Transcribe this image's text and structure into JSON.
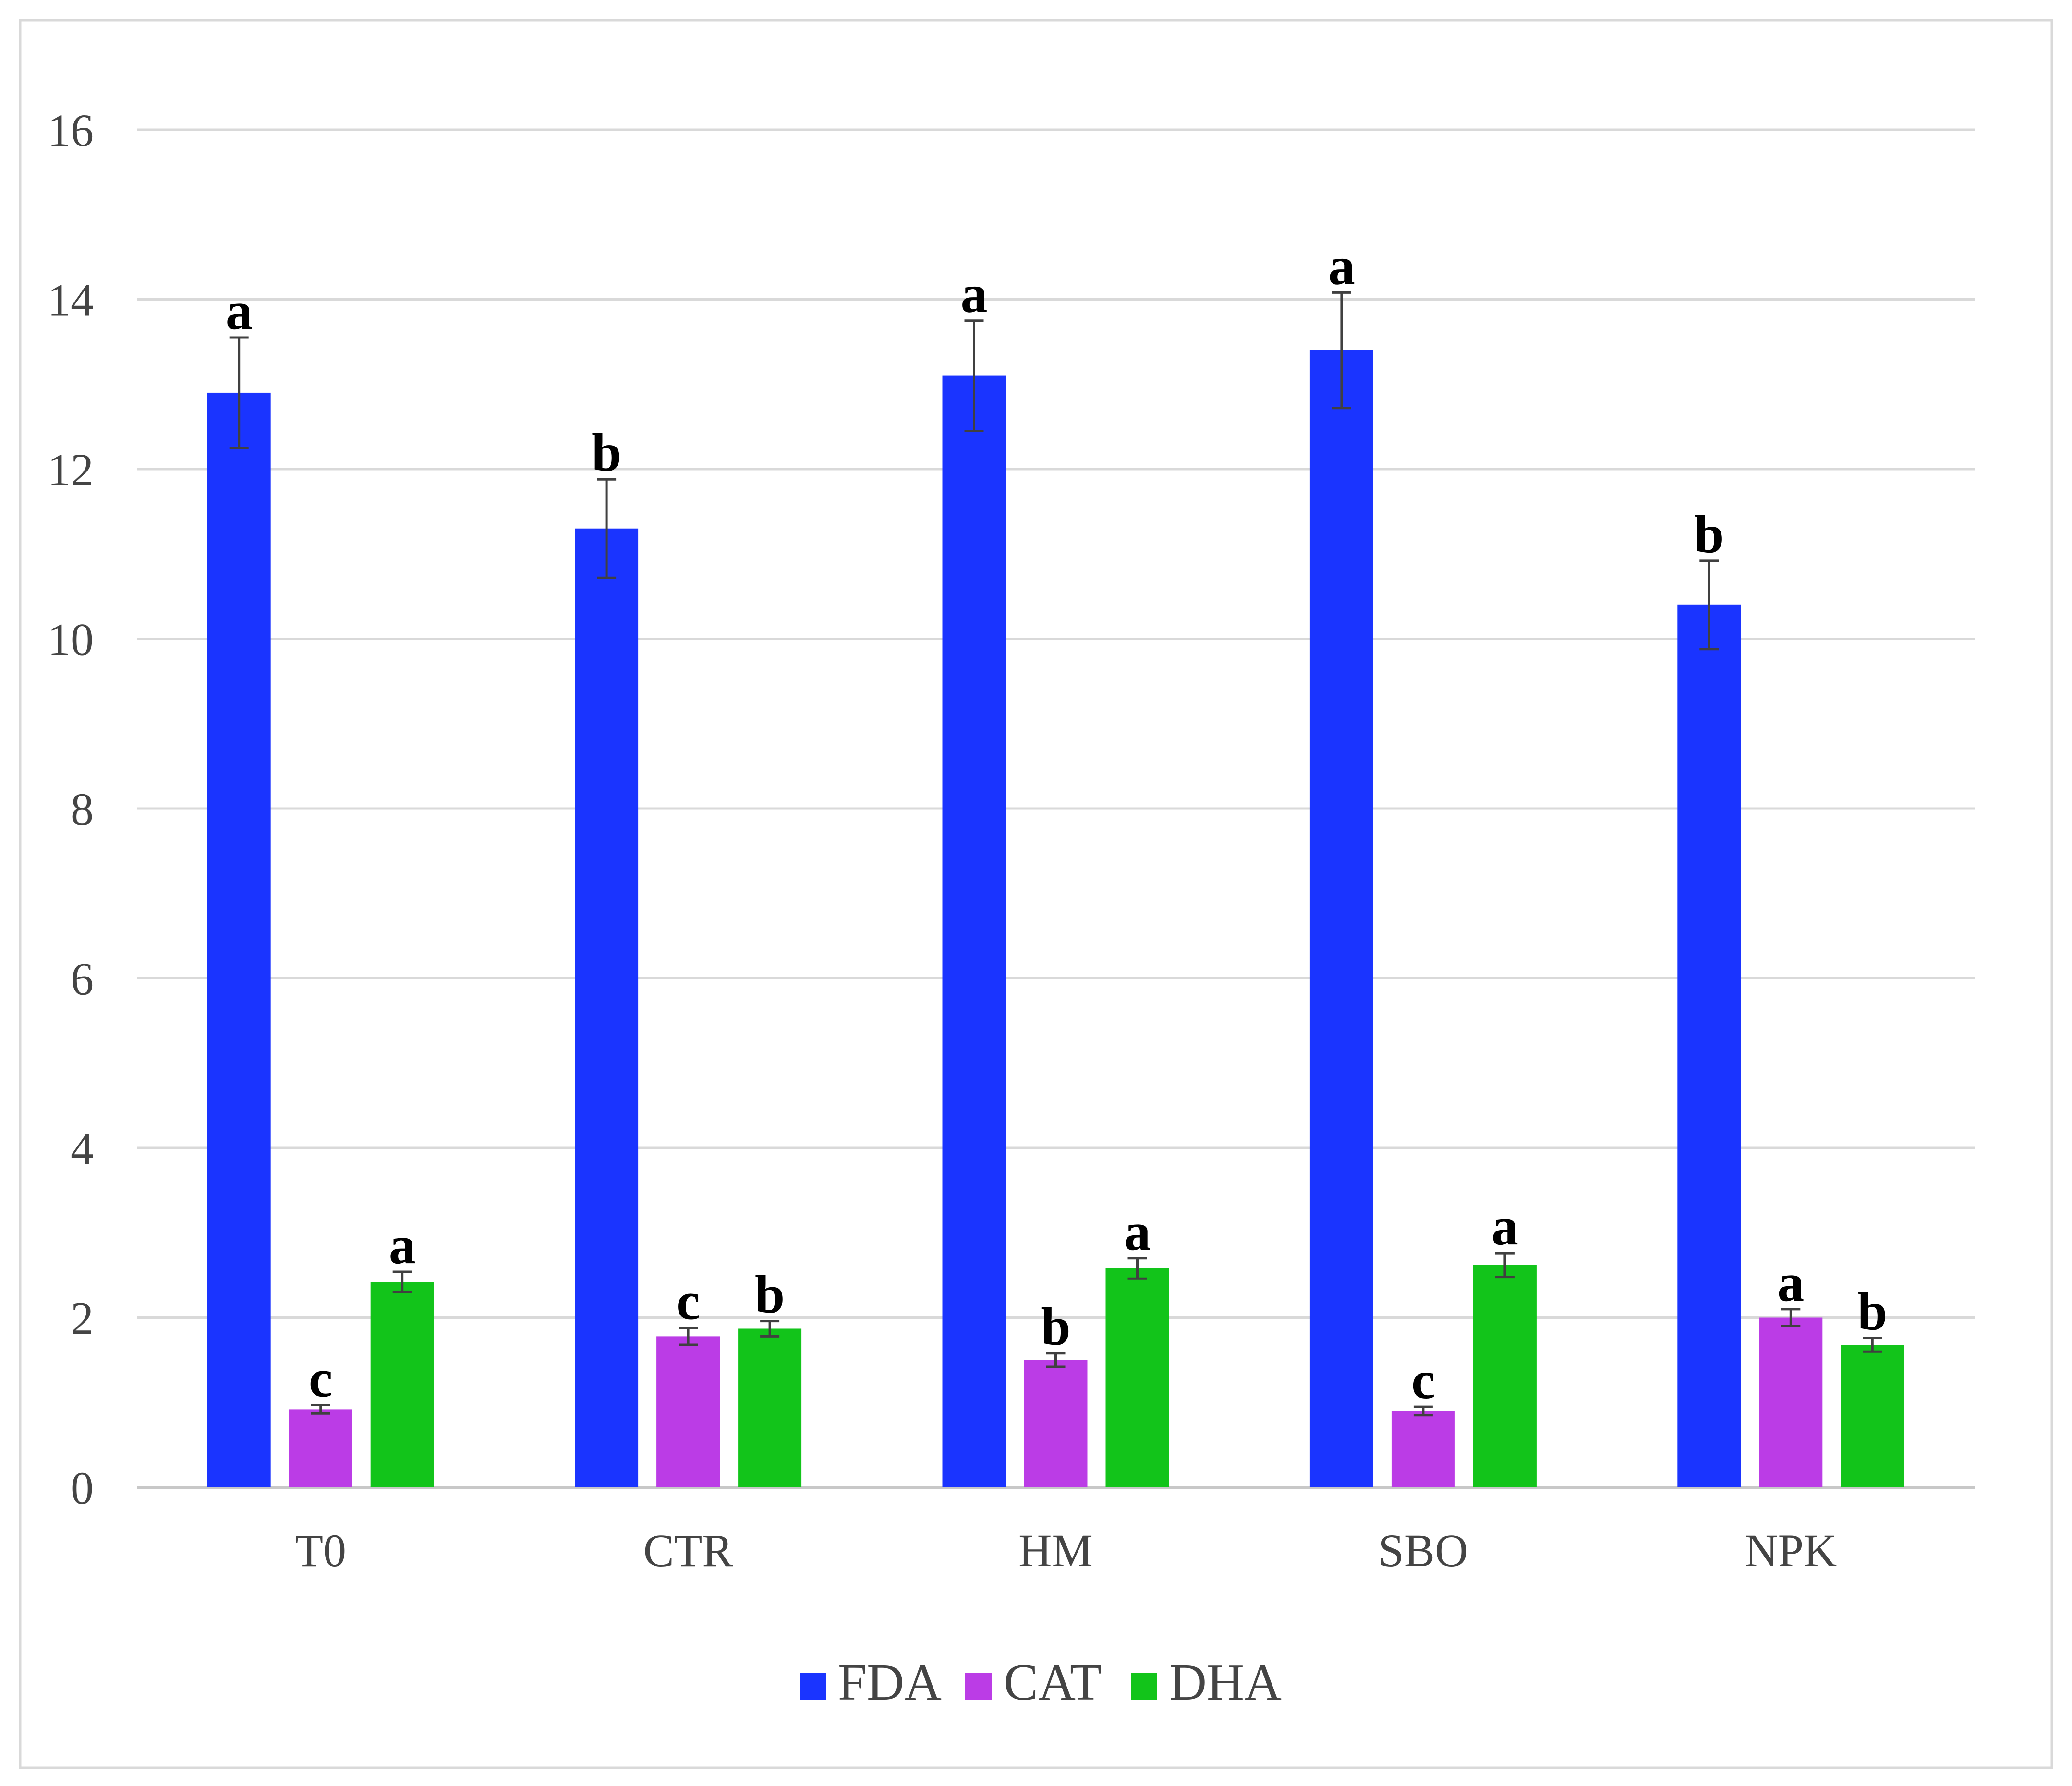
{
  "chart_data": {
    "type": "bar",
    "title": "",
    "xlabel": "",
    "ylabel": "",
    "ylim": [
      0,
      16
    ],
    "yticks": [
      0,
      2,
      4,
      6,
      8,
      10,
      12,
      14,
      16
    ],
    "grid": true,
    "legend_position": "bottom-center",
    "categories": [
      "T0",
      "CTR",
      "HM",
      "SBO",
      "NPK"
    ],
    "series": [
      {
        "name": "FDA",
        "color": "#1a34ff",
        "values": [
          12.9,
          11.3,
          13.1,
          13.4,
          10.4
        ],
        "errors": [
          0.65,
          0.58,
          0.65,
          0.68,
          0.52
        ],
        "letters": [
          "a",
          "b",
          "a",
          "a",
          "b"
        ]
      },
      {
        "name": "CAT",
        "color": "#bb3ce6",
        "values": [
          0.92,
          1.78,
          1.5,
          0.9,
          2.0
        ],
        "errors": [
          0.05,
          0.1,
          0.08,
          0.05,
          0.1
        ],
        "letters": [
          "c",
          "c",
          "b",
          "c",
          "a"
        ]
      },
      {
        "name": "DHA",
        "color": "#12c41a",
        "values": [
          2.42,
          1.87,
          2.58,
          2.62,
          1.68
        ],
        "errors": [
          0.12,
          0.09,
          0.12,
          0.14,
          0.08
        ],
        "letters": [
          "a",
          "b",
          "a",
          "a",
          "b"
        ]
      }
    ]
  }
}
